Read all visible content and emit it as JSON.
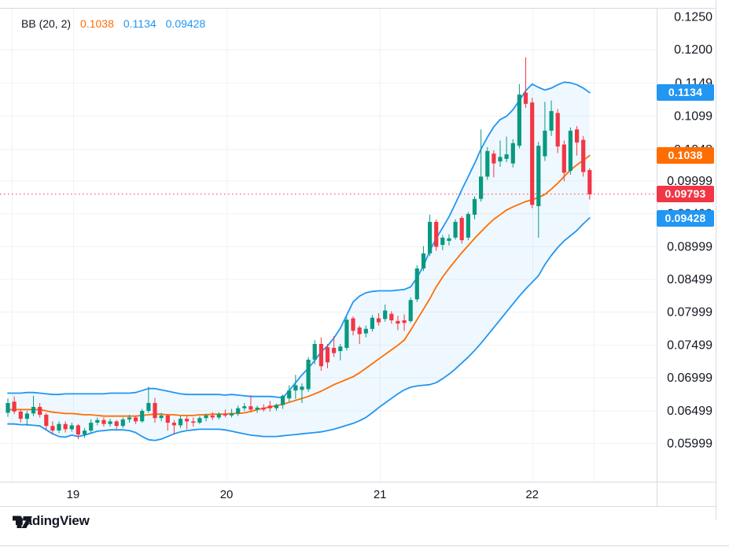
{
  "legend": {
    "indicator": "BB (20, 2)",
    "basis_value": "0.1038",
    "upper_value": "0.1134",
    "lower_value": "0.09428"
  },
  "watermark": {
    "brand": "TradingView"
  },
  "colors": {
    "up": "#089981",
    "down": "#f23645",
    "band_line": "#2196f3",
    "basis_line": "#ff6d00",
    "band_fill": "rgba(33,150,243,0.07)",
    "grid": "#f0f2f5",
    "border": "#d6dae2",
    "text": "#131722",
    "badge_blue": "#2196f3",
    "badge_orange": "#ff6d00",
    "badge_red": "#f23645",
    "last_price_line": "#f23645",
    "legend_basis": "#ff6d00",
    "legend_band": "#2196f3"
  },
  "price_axis": {
    "badges": [
      {
        "label": "0.1134",
        "price": 0.1134,
        "color_key": "badge_blue"
      },
      {
        "label": "0.1038",
        "price": 0.1038,
        "color_key": "badge_orange"
      },
      {
        "label": "0.09793",
        "price": 0.09793,
        "color_key": "badge_red"
      },
      {
        "label": "0.09428",
        "price": 0.09428,
        "color_key": "badge_blue"
      }
    ]
  },
  "chart_data": {
    "type": "candlestick",
    "title": "BB (20, 2)",
    "legend_position": "top-left",
    "grid": true,
    "ylim": [
      0.05411,
      0.1262
    ],
    "last_price": 0.09793,
    "yticks": [
      {
        "label": "0.1250",
        "price": 0.125
      },
      {
        "label": "0.1200",
        "price": 0.12
      },
      {
        "label": "0.1149",
        "price": 0.1149
      },
      {
        "label": "0.1099",
        "price": 0.1099
      },
      {
        "label": "0.1048",
        "price": 0.1048
      },
      {
        "label": "0.09999",
        "price": 0.09999
      },
      {
        "label": "0.09499",
        "price": 0.09499
      },
      {
        "label": "0.08999",
        "price": 0.08999
      },
      {
        "label": "0.08499",
        "price": 0.08499
      },
      {
        "label": "0.07999",
        "price": 0.07999
      },
      {
        "label": "0.07499",
        "price": 0.07499
      },
      {
        "label": "0.06999",
        "price": 0.06999
      },
      {
        "label": "0.06499",
        "price": 0.06499
      },
      {
        "label": "0.05999",
        "price": 0.05999
      }
    ],
    "x_labels": [
      {
        "label": "19",
        "index": 10.2
      },
      {
        "label": "20",
        "index": 34.2
      },
      {
        "label": "21",
        "index": 58.2
      },
      {
        "label": "22",
        "index": 82.0
      }
    ],
    "vgrid_indices": [
      0.6,
      10.2,
      34.2,
      58.2,
      82.0,
      91.6
    ],
    "candles": [
      [
        0.0646,
        0.0668,
        0.064,
        0.0661
      ],
      [
        0.0663,
        0.0671,
        0.0644,
        0.0648
      ],
      [
        0.0648,
        0.0652,
        0.0631,
        0.0637
      ],
      [
        0.0637,
        0.0649,
        0.0626,
        0.0645
      ],
      [
        0.0645,
        0.0672,
        0.0641,
        0.0655
      ],
      [
        0.0655,
        0.0661,
        0.0639,
        0.0643
      ],
      [
        0.0643,
        0.0646,
        0.0621,
        0.0626
      ],
      [
        0.0626,
        0.0633,
        0.0613,
        0.0619
      ],
      [
        0.0619,
        0.0633,
        0.0615,
        0.0629
      ],
      [
        0.0629,
        0.0633,
        0.0616,
        0.0621
      ],
      [
        0.0621,
        0.0631,
        0.0617,
        0.0627
      ],
      [
        0.0627,
        0.0629,
        0.0606,
        0.0613
      ],
      [
        0.0613,
        0.0623,
        0.0608,
        0.0619
      ],
      [
        0.0619,
        0.0636,
        0.0616,
        0.0631
      ],
      [
        0.0631,
        0.0639,
        0.0627,
        0.0635
      ],
      [
        0.0635,
        0.0639,
        0.0625,
        0.0629
      ],
      [
        0.0629,
        0.0637,
        0.0625,
        0.0633
      ],
      [
        0.0633,
        0.0635,
        0.0621,
        0.0626
      ],
      [
        0.0626,
        0.0639,
        0.0623,
        0.0636
      ],
      [
        0.0636,
        0.0643,
        0.0631,
        0.0639
      ],
      [
        0.0639,
        0.0641,
        0.0629,
        0.0633
      ],
      [
        0.0633,
        0.0652,
        0.0631,
        0.0649
      ],
      [
        0.0649,
        0.0686,
        0.0646,
        0.0661
      ],
      [
        0.0661,
        0.0669,
        0.0631,
        0.0638
      ],
      [
        0.0638,
        0.0646,
        0.0633,
        0.0642
      ],
      [
        0.0642,
        0.0644,
        0.0619,
        0.0631
      ],
      [
        0.0631,
        0.0635,
        0.0613,
        0.0627
      ],
      [
        0.0627,
        0.0641,
        0.0623,
        0.0637
      ],
      [
        0.0637,
        0.0641,
        0.0621,
        0.0633
      ],
      [
        0.0633,
        0.0639,
        0.0625,
        0.0631
      ],
      [
        0.0631,
        0.0641,
        0.0629,
        0.0638
      ],
      [
        0.0638,
        0.0645,
        0.0633,
        0.0642
      ],
      [
        0.0642,
        0.0647,
        0.0635,
        0.0639
      ],
      [
        0.0639,
        0.0647,
        0.0636,
        0.0644
      ],
      [
        0.0644,
        0.0651,
        0.0639,
        0.0642
      ],
      [
        0.0642,
        0.0652,
        0.0639,
        0.0645
      ],
      [
        0.0645,
        0.0657,
        0.0641,
        0.0653
      ],
      [
        0.0653,
        0.0661,
        0.0649,
        0.0656
      ],
      [
        0.0656,
        0.0673,
        0.0647,
        0.0651
      ],
      [
        0.0651,
        0.0657,
        0.0646,
        0.0654
      ],
      [
        0.0654,
        0.0659,
        0.0648,
        0.0651
      ],
      [
        0.0657,
        0.0664,
        0.0648,
        0.0653
      ],
      [
        0.0653,
        0.066,
        0.0649,
        0.0658
      ],
      [
        0.0658,
        0.0674,
        0.0652,
        0.0672
      ],
      [
        0.0668,
        0.0688,
        0.0663,
        0.068
      ],
      [
        0.068,
        0.0704,
        0.0667,
        0.0688
      ],
      [
        0.0681,
        0.0691,
        0.0661,
        0.0686
      ],
      [
        0.0682,
        0.0731,
        0.0678,
        0.0727
      ],
      [
        0.0727,
        0.0757,
        0.072,
        0.0751
      ],
      [
        0.0751,
        0.0761,
        0.071,
        0.0717
      ],
      [
        0.0746,
        0.0751,
        0.0714,
        0.0723
      ],
      [
        0.0745,
        0.0763,
        0.0731,
        0.0737
      ],
      [
        0.074,
        0.0751,
        0.0726,
        0.0747
      ],
      [
        0.0745,
        0.0792,
        0.0741,
        0.0788
      ],
      [
        0.079,
        0.0793,
        0.0764,
        0.0771
      ],
      [
        0.0776,
        0.0779,
        0.0751,
        0.0766
      ],
      [
        0.0767,
        0.0779,
        0.0761,
        0.0774
      ],
      [
        0.0774,
        0.0795,
        0.077,
        0.0791
      ],
      [
        0.079,
        0.0798,
        0.0779,
        0.0784
      ],
      [
        0.0789,
        0.0811,
        0.0785,
        0.0802
      ],
      [
        0.0797,
        0.0801,
        0.0782,
        0.0787
      ],
      [
        0.0786,
        0.0794,
        0.0772,
        0.0782
      ],
      [
        0.0787,
        0.0796,
        0.0771,
        0.0783
      ],
      [
        0.0786,
        0.0822,
        0.0783,
        0.0818
      ],
      [
        0.0819,
        0.0871,
        0.0815,
        0.0866
      ],
      [
        0.0866,
        0.09,
        0.0862,
        0.0889
      ],
      [
        0.0889,
        0.0948,
        0.0885,
        0.0937
      ],
      [
        0.0937,
        0.0941,
        0.0893,
        0.0899
      ],
      [
        0.0902,
        0.0917,
        0.0894,
        0.0913
      ],
      [
        0.0908,
        0.0918,
        0.0901,
        0.0912
      ],
      [
        0.0913,
        0.0941,
        0.091,
        0.0937
      ],
      [
        0.0943,
        0.0946,
        0.0904,
        0.0909
      ],
      [
        0.0913,
        0.0952,
        0.0909,
        0.0949
      ],
      [
        0.0948,
        0.0976,
        0.0941,
        0.0972
      ],
      [
        0.0972,
        0.1078,
        0.0968,
        0.1006
      ],
      [
        0.1006,
        0.1051,
        0.1001,
        0.1045
      ],
      [
        0.1041,
        0.1046,
        0.1005,
        0.1026
      ],
      [
        0.1029,
        0.1061,
        0.1021,
        0.1036
      ],
      [
        0.1033,
        0.1067,
        0.1028,
        0.104
      ],
      [
        0.1026,
        0.1063,
        0.102,
        0.1057
      ],
      [
        0.1053,
        0.1147,
        0.1049,
        0.1131
      ],
      [
        0.1134,
        0.1188,
        0.1111,
        0.1117
      ],
      [
        0.1119,
        0.1126,
        0.0958,
        0.0963
      ],
      [
        0.0961,
        0.1059,
        0.0913,
        0.1053
      ],
      [
        0.1037,
        0.112,
        0.103,
        0.1076
      ],
      [
        0.1076,
        0.1122,
        0.1068,
        0.1106
      ],
      [
        0.1103,
        0.1109,
        0.1042,
        0.1052
      ],
      [
        0.1055,
        0.1061,
        0.0999,
        0.1012
      ],
      [
        0.1015,
        0.1081,
        0.1009,
        0.1076
      ],
      [
        0.1078,
        0.1083,
        0.1038,
        0.1058
      ],
      [
        0.1062,
        0.1068,
        0.1006,
        0.1013
      ],
      [
        0.1016,
        0.1019,
        0.0971,
        0.0979
      ]
    ],
    "bollinger": {
      "upper": [
        0.0676,
        0.0676,
        0.0676,
        0.0677,
        0.0677,
        0.0676,
        0.0675,
        0.0674,
        0.0674,
        0.0675,
        0.0675,
        0.0675,
        0.0675,
        0.0675,
        0.0675,
        0.0675,
        0.0676,
        0.0676,
        0.0676,
        0.0676,
        0.0677,
        0.068,
        0.0683,
        0.0683,
        0.0681,
        0.0679,
        0.0677,
        0.0675,
        0.0674,
        0.0674,
        0.0674,
        0.0674,
        0.0674,
        0.0674,
        0.0673,
        0.0674,
        0.0673,
        0.0672,
        0.0671,
        0.0671,
        0.0671,
        0.0671,
        0.067,
        0.0669,
        0.068,
        0.0692,
        0.0704,
        0.0714,
        0.0726,
        0.0739,
        0.0748,
        0.076,
        0.0775,
        0.0795,
        0.0815,
        0.0824,
        0.0829,
        0.0831,
        0.0832,
        0.0832,
        0.0832,
        0.0833,
        0.0834,
        0.0838,
        0.0852,
        0.087,
        0.0893,
        0.0912,
        0.0928,
        0.0945,
        0.0965,
        0.0986,
        0.1006,
        0.1026,
        0.1048,
        0.1066,
        0.1082,
        0.1093,
        0.1098,
        0.1108,
        0.1122,
        0.1137,
        0.1147,
        0.1142,
        0.1138,
        0.1141,
        0.1146,
        0.115,
        0.1149,
        0.1146,
        0.1141,
        0.1134
      ],
      "basis": [
        0.0651,
        0.0651,
        0.0651,
        0.0651,
        0.0651,
        0.0651,
        0.0649,
        0.0647,
        0.0646,
        0.0645,
        0.0645,
        0.0644,
        0.0643,
        0.0643,
        0.0642,
        0.0641,
        0.0641,
        0.0641,
        0.0641,
        0.0641,
        0.0641,
        0.0642,
        0.0643,
        0.0644,
        0.0644,
        0.0643,
        0.0643,
        0.0642,
        0.0642,
        0.0642,
        0.0643,
        0.0643,
        0.0644,
        0.0644,
        0.0644,
        0.0645,
        0.0645,
        0.0646,
        0.0648,
        0.0651,
        0.0653,
        0.0655,
        0.0657,
        0.0659,
        0.0662,
        0.0665,
        0.0668,
        0.0671,
        0.0675,
        0.0679,
        0.0684,
        0.0689,
        0.0693,
        0.0697,
        0.0701,
        0.0707,
        0.0714,
        0.0721,
        0.0728,
        0.0735,
        0.0742,
        0.0749,
        0.0757,
        0.0772,
        0.0788,
        0.0804,
        0.082,
        0.0838,
        0.0853,
        0.0866,
        0.0878,
        0.089,
        0.0901,
        0.0912,
        0.0922,
        0.0932,
        0.0941,
        0.0948,
        0.0955,
        0.096,
        0.0964,
        0.0968,
        0.0971,
        0.0974,
        0.0979,
        0.0987,
        0.0996,
        0.1006,
        0.1016,
        0.1024,
        0.1031,
        0.1038
      ],
      "lower": [
        0.0629,
        0.0629,
        0.0628,
        0.0628,
        0.0627,
        0.0626,
        0.062,
        0.0614,
        0.061,
        0.0609,
        0.0612,
        0.061,
        0.0612,
        0.0615,
        0.0618,
        0.0619,
        0.062,
        0.062,
        0.062,
        0.0619,
        0.0616,
        0.061,
        0.0605,
        0.0604,
        0.0606,
        0.061,
        0.0614,
        0.0617,
        0.0619,
        0.062,
        0.0621,
        0.0621,
        0.0621,
        0.0621,
        0.062,
        0.0618,
        0.0616,
        0.0614,
        0.0612,
        0.0611,
        0.061,
        0.061,
        0.061,
        0.0611,
        0.0612,
        0.0613,
        0.0614,
        0.0615,
        0.0616,
        0.0617,
        0.0619,
        0.0621,
        0.0624,
        0.0627,
        0.063,
        0.0634,
        0.0639,
        0.0646,
        0.0654,
        0.0661,
        0.0668,
        0.0675,
        0.0681,
        0.0685,
        0.0687,
        0.0688,
        0.0689,
        0.0692,
        0.0698,
        0.0705,
        0.0713,
        0.0722,
        0.0731,
        0.0741,
        0.0752,
        0.0764,
        0.0776,
        0.0788,
        0.08,
        0.0812,
        0.0824,
        0.0835,
        0.0845,
        0.0855,
        0.0872,
        0.0886,
        0.0898,
        0.0908,
        0.0916,
        0.0924,
        0.0934,
        0.0943
      ]
    }
  }
}
